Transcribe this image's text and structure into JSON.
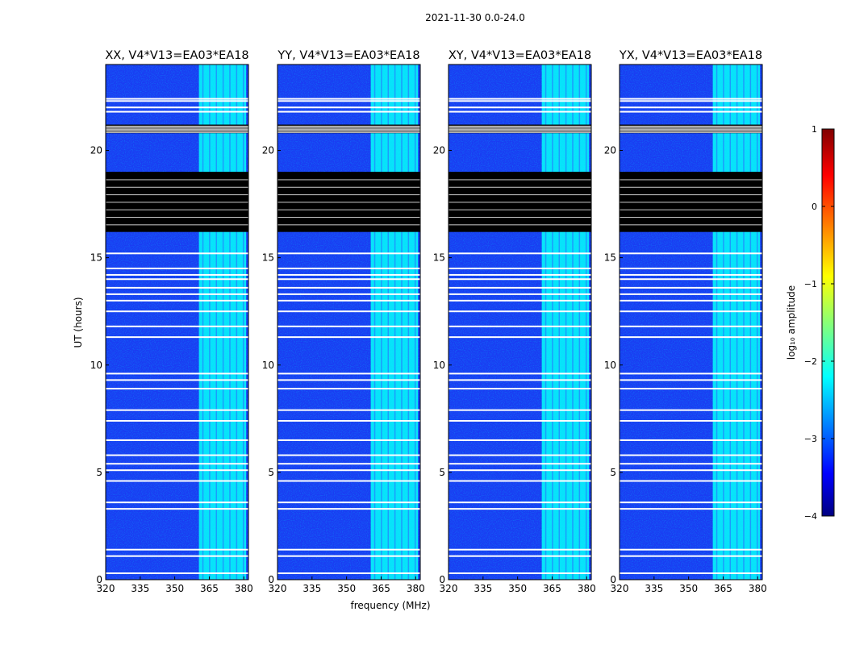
{
  "figure_title": "2021-11-30 0.0-24.0",
  "chart_data": {
    "type": "heatmap",
    "shared": {
      "xlabel": "frequency (MHz)",
      "ylabel": "UT (hours)",
      "xlim": [
        320,
        382
      ],
      "ylim": [
        0,
        24
      ],
      "xticks": [
        320,
        335,
        350,
        365,
        380
      ],
      "yticks": [
        0,
        5,
        10,
        15,
        20
      ],
      "colormap": "jet",
      "colorbar": {
        "label": "log₁₀ amplitude",
        "range": [
          -4,
          1
        ],
        "ticks": [
          1,
          0,
          -1,
          -2,
          -3,
          -4
        ]
      }
    },
    "panels": [
      {
        "title": "XX, V4*V13=EA03*EA18"
      },
      {
        "title": "YY, V4*V13=EA03*EA18"
      },
      {
        "title": "XY, V4*V13=EA03*EA18"
      },
      {
        "title": "YX, V4*V13=EA03*EA18"
      }
    ],
    "rfi_band_mhz": [
      {
        "start": 360.5,
        "end": 381.0,
        "level": -2.1
      }
    ],
    "flagged_time_ranges_hours": [
      {
        "start": 16.2,
        "end": 19.0
      },
      {
        "start": 20.8,
        "end": 21.2
      }
    ],
    "blank_time_rows_hours": [
      0.3,
      1.1,
      1.4,
      3.3,
      3.6,
      4.6,
      5.1,
      5.4,
      5.8,
      6.5,
      7.4,
      7.9,
      8.9,
      9.3,
      9.6,
      11.3,
      11.8,
      12.5,
      13.0,
      13.3,
      13.6,
      14.0,
      14.2,
      14.5,
      15.2,
      21.8,
      22.0,
      22.3,
      22.4
    ]
  }
}
